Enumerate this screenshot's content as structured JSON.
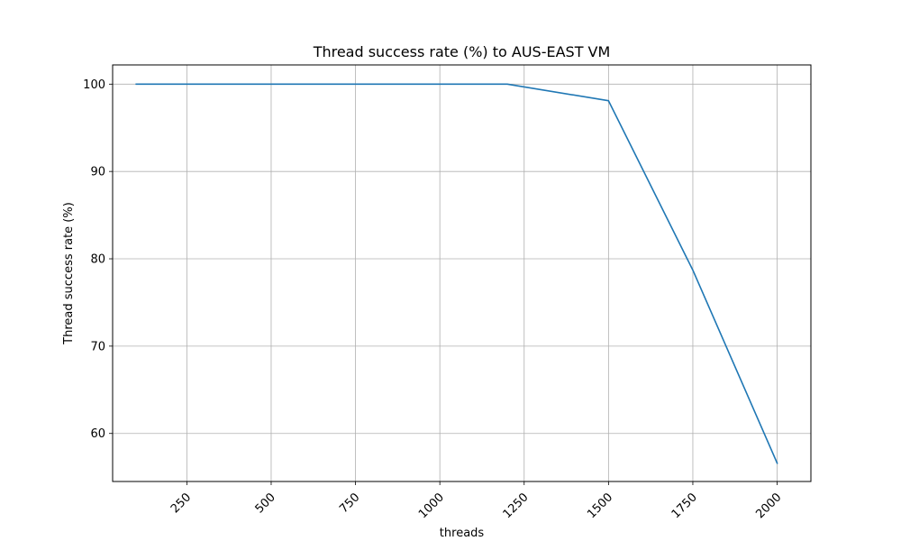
{
  "chart_data": {
    "type": "line",
    "title": "Thread success rate (%) to AUS-EAST VM",
    "xlabel": "threads",
    "ylabel": "Thread success rate (%)",
    "xlim": [
      30,
      2100
    ],
    "ylim": [
      54.5,
      102.2
    ],
    "x_ticks": [
      250,
      500,
      750,
      1000,
      1250,
      1500,
      1750,
      2000
    ],
    "y_ticks": [
      60,
      70,
      80,
      90,
      100
    ],
    "x_tick_rotation_deg": 45,
    "grid": true,
    "legend": "none",
    "series": [
      {
        "color": "#1f77b4",
        "x": [
          100,
          200,
          300,
          400,
          500,
          600,
          700,
          800,
          900,
          1000,
          1100,
          1200,
          1500,
          1750,
          2000
        ],
        "y": [
          100,
          100,
          100,
          100,
          100,
          100,
          100,
          100,
          100,
          100,
          100,
          100,
          98.1,
          78.7,
          56.6
        ]
      }
    ]
  }
}
